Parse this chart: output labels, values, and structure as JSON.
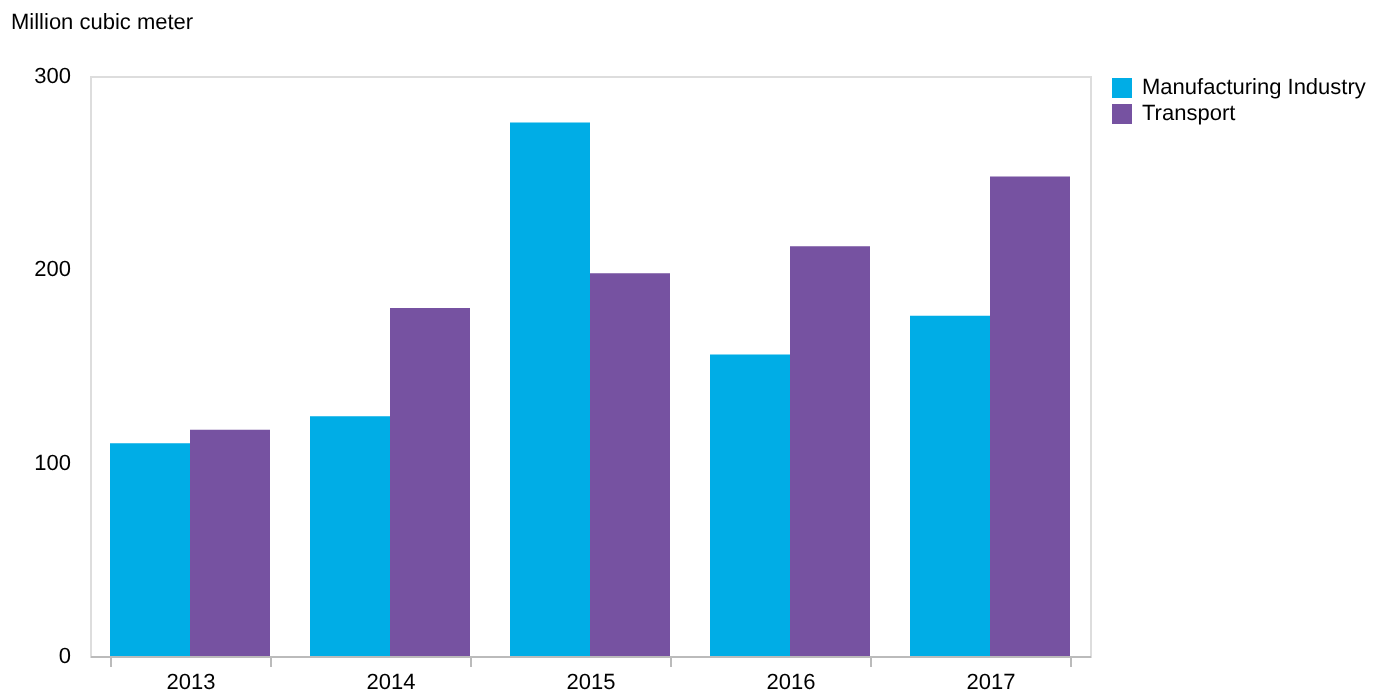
{
  "chart_data": {
    "type": "bar",
    "ylabel": "Million cubic meter",
    "categories": [
      "2013",
      "2014",
      "2015",
      "2016",
      "2017"
    ],
    "series": [
      {
        "name": "Manufacturing Industry",
        "color": "#00ade6",
        "values": [
          110,
          124,
          276,
          156,
          176
        ]
      },
      {
        "name": "Transport",
        "color": "#7652a1",
        "values": [
          117,
          180,
          198,
          212,
          248
        ]
      }
    ],
    "ylim": [
      0,
      300
    ],
    "yticks": [
      0,
      100,
      200,
      300
    ],
    "grid": false,
    "legend": "right"
  }
}
